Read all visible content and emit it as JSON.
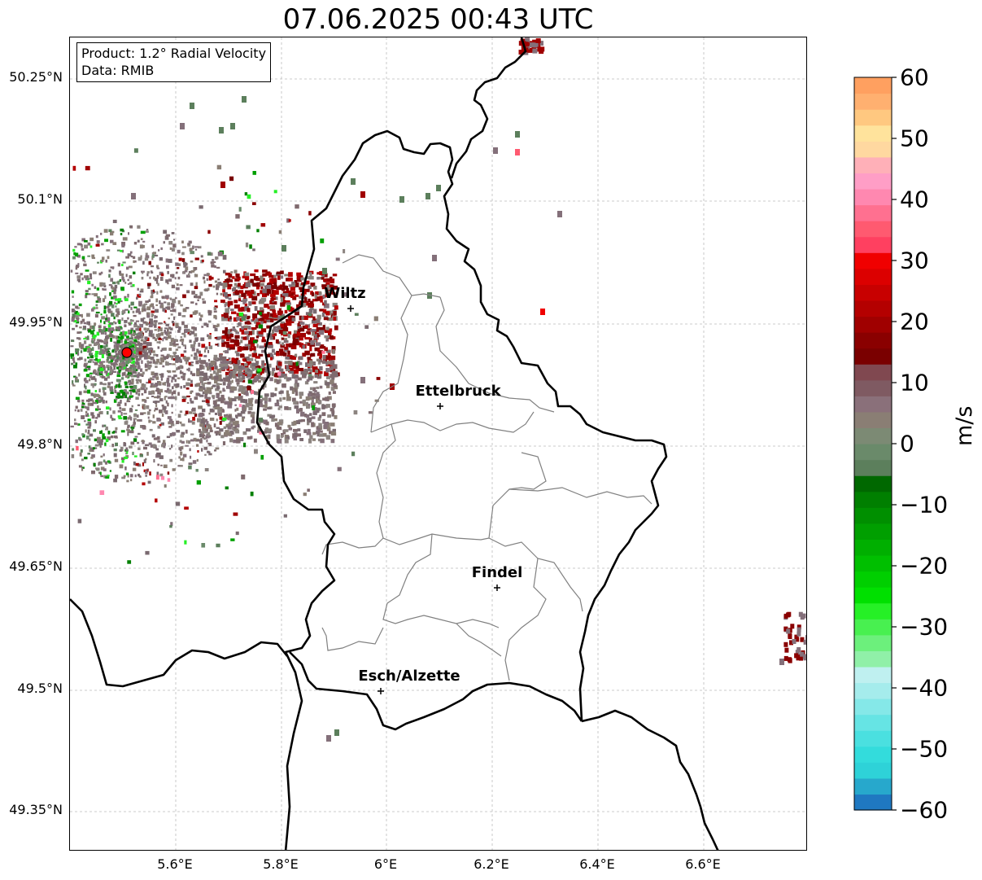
{
  "title": "07.06.2025 00:43 UTC",
  "info_box": {
    "product": "Product: 1.2° Radial Velocity",
    "source": "Data: RMIB"
  },
  "lat_labels": [
    "50.25°N",
    "50.1°N",
    "49.95°N",
    "49.8°N",
    "49.65°N",
    "49.5°N",
    "49.35°N"
  ],
  "lon_labels": [
    "5.6°E",
    "5.8°E",
    "6°E",
    "6.2°E",
    "6.4°E",
    "6.6°E"
  ],
  "cities": [
    {
      "name": "Wiltz"
    },
    {
      "name": "Ettelbruck"
    },
    {
      "name": "Findel"
    },
    {
      "name": "Esch/Alzette"
    }
  ],
  "colorbar": {
    "unit": "m/s",
    "ticks": [
      "60",
      "50",
      "40",
      "30",
      "20",
      "10",
      "0",
      "−10",
      "−20",
      "−30",
      "−40",
      "−50",
      "−60"
    ],
    "range": [
      -60,
      60
    ],
    "colors_low_to_high": [
      "#1f78c1",
      "#27a8cc",
      "#2ed2d8",
      "#33dcdc",
      "#4ae0e0",
      "#66e4e4",
      "#85e8e8",
      "#a5ecec",
      "#bff0f0",
      "#90f0a8",
      "#6cf07c",
      "#48f050",
      "#26f026",
      "#00e000",
      "#00cf00",
      "#00bf00",
      "#00af00",
      "#009f00",
      "#008f00",
      "#007f00",
      "#006800",
      "#5c7f5c",
      "#6a8a6a",
      "#7c8a74",
      "#8a7e74",
      "#8a707a",
      "#7f5a62",
      "#804850",
      "#7a0000",
      "#8a0000",
      "#a00000",
      "#b40000",
      "#c80000",
      "#dc0000",
      "#f00000",
      "#ff4060",
      "#ff5a70",
      "#ff7090",
      "#ff88b0",
      "#ff9ec6",
      "#ffb0b8",
      "#ffd8a0",
      "#ffe39c",
      "#ffc880",
      "#ffb070",
      "#ffa060"
    ]
  },
  "radar_site_color": "#ff0000"
}
